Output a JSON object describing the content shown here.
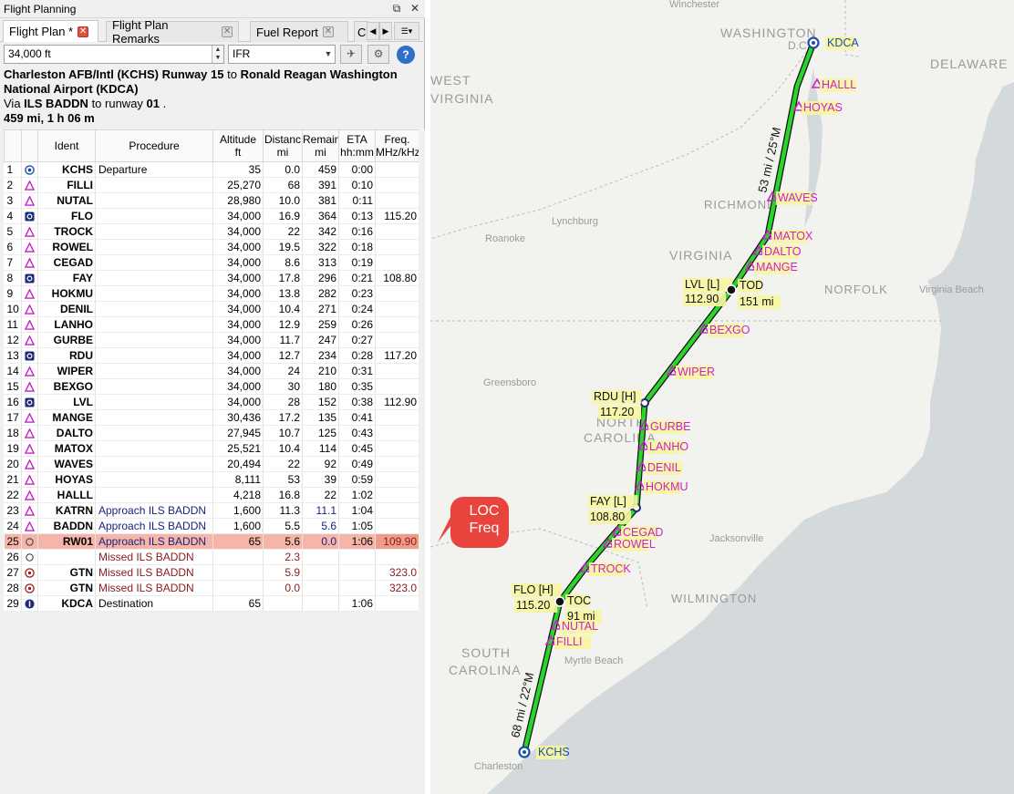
{
  "window": {
    "title": "Flight Planning",
    "float_icon": "⧉",
    "close_icon": "✕"
  },
  "tabs": [
    {
      "label": "Flight Plan *",
      "close": "✕"
    },
    {
      "label": "Flight Plan Remarks",
      "close": "✕"
    },
    {
      "label": "Fuel Report",
      "close": "✕"
    },
    {
      "label": "C",
      "close": ""
    }
  ],
  "toolbar": {
    "altitude_value": "34,000 ft",
    "flight_rules_value": "IFR",
    "help_label": "?"
  },
  "summary": {
    "departure": "Charleston AFB/Intl (KCHS) Runway 15",
    "to_word": " to ",
    "destination": "Ronald Reagan Washington National Airport (KDCA)",
    "via_prefix": "Via ",
    "approach": "ILS BADDN",
    "runway_prefix": " to runway ",
    "runway": "01",
    "runway_suffix": " .",
    "distance_time": "459 mi, 1 h 06 m"
  },
  "table": {
    "headers": {
      "ident": "Ident",
      "procedure": "Procedure",
      "altitude": [
        "Altitude",
        "ft"
      ],
      "distance": [
        "Distanc",
        "mi"
      ],
      "remaining": [
        "Remainin",
        "mi"
      ],
      "eta": [
        "ETA",
        "hh:mm"
      ],
      "freq": [
        "Freq.",
        "MHz/kHz/C"
      ]
    },
    "rows": [
      {
        "n": "1",
        "icon": "airport",
        "ident": "KCHS",
        "proc": "Departure",
        "alt": "35",
        "dist": "0.0",
        "rem": "459",
        "eta": "0:00",
        "freq": ""
      },
      {
        "n": "2",
        "icon": "waypoint",
        "ident": "FILLI",
        "proc": "",
        "alt": "25,270",
        "dist": "68",
        "rem": "391",
        "eta": "0:10",
        "freq": ""
      },
      {
        "n": "3",
        "icon": "waypoint",
        "ident": "NUTAL",
        "proc": "",
        "alt": "28,980",
        "dist": "10.0",
        "rem": "381",
        "eta": "0:11",
        "freq": ""
      },
      {
        "n": "4",
        "icon": "vor",
        "ident": "FLO",
        "proc": "",
        "alt": "34,000",
        "dist": "16.9",
        "rem": "364",
        "eta": "0:13",
        "freq": "115.20"
      },
      {
        "n": "5",
        "icon": "waypoint",
        "ident": "TROCK",
        "proc": "",
        "alt": "34,000",
        "dist": "22",
        "rem": "342",
        "eta": "0:16",
        "freq": ""
      },
      {
        "n": "6",
        "icon": "waypoint",
        "ident": "ROWEL",
        "proc": "",
        "alt": "34,000",
        "dist": "19.5",
        "rem": "322",
        "eta": "0:18",
        "freq": ""
      },
      {
        "n": "7",
        "icon": "waypoint",
        "ident": "CEGAD",
        "proc": "",
        "alt": "34,000",
        "dist": "8.6",
        "rem": "313",
        "eta": "0:19",
        "freq": ""
      },
      {
        "n": "8",
        "icon": "vor",
        "ident": "FAY",
        "proc": "",
        "alt": "34,000",
        "dist": "17.8",
        "rem": "296",
        "eta": "0:21",
        "freq": "108.80"
      },
      {
        "n": "9",
        "icon": "waypoint",
        "ident": "HOKMU",
        "proc": "",
        "alt": "34,000",
        "dist": "13.8",
        "rem": "282",
        "eta": "0:23",
        "freq": ""
      },
      {
        "n": "10",
        "icon": "waypoint",
        "ident": "DENIL",
        "proc": "",
        "alt": "34,000",
        "dist": "10.4",
        "rem": "271",
        "eta": "0:24",
        "freq": ""
      },
      {
        "n": "11",
        "icon": "waypoint",
        "ident": "LANHO",
        "proc": "",
        "alt": "34,000",
        "dist": "12.9",
        "rem": "259",
        "eta": "0:26",
        "freq": ""
      },
      {
        "n": "12",
        "icon": "waypoint",
        "ident": "GURBE",
        "proc": "",
        "alt": "34,000",
        "dist": "11.7",
        "rem": "247",
        "eta": "0:27",
        "freq": ""
      },
      {
        "n": "13",
        "icon": "vor",
        "ident": "RDU",
        "proc": "",
        "alt": "34,000",
        "dist": "12.7",
        "rem": "234",
        "eta": "0:28",
        "freq": "117.20"
      },
      {
        "n": "14",
        "icon": "waypoint",
        "ident": "WIPER",
        "proc": "",
        "alt": "34,000",
        "dist": "24",
        "rem": "210",
        "eta": "0:31",
        "freq": ""
      },
      {
        "n": "15",
        "icon": "waypoint",
        "ident": "BEXGO",
        "proc": "",
        "alt": "34,000",
        "dist": "30",
        "rem": "180",
        "eta": "0:35",
        "freq": ""
      },
      {
        "n": "16",
        "icon": "vor",
        "ident": "LVL",
        "proc": "",
        "alt": "34,000",
        "dist": "28",
        "rem": "152",
        "eta": "0:38",
        "freq": "112.90"
      },
      {
        "n": "17",
        "icon": "waypoint",
        "ident": "MANGE",
        "proc": "",
        "alt": "30,436",
        "dist": "17.2",
        "rem": "135",
        "eta": "0:41",
        "freq": ""
      },
      {
        "n": "18",
        "icon": "waypoint",
        "ident": "DALTO",
        "proc": "",
        "alt": "27,945",
        "dist": "10.7",
        "rem": "125",
        "eta": "0:43",
        "freq": ""
      },
      {
        "n": "19",
        "icon": "waypoint",
        "ident": "MATOX",
        "proc": "",
        "alt": "25,521",
        "dist": "10.4",
        "rem": "114",
        "eta": "0:45",
        "freq": ""
      },
      {
        "n": "20",
        "icon": "waypoint",
        "ident": "WAVES",
        "proc": "",
        "alt": "20,494",
        "dist": "22",
        "rem": "92",
        "eta": "0:49",
        "freq": ""
      },
      {
        "n": "21",
        "icon": "waypoint",
        "ident": "HOYAS",
        "proc": "",
        "alt": "8,111",
        "dist": "53",
        "rem": "39",
        "eta": "0:59",
        "freq": ""
      },
      {
        "n": "22",
        "icon": "waypoint",
        "ident": "HALLL",
        "proc": "",
        "alt": "4,218",
        "dist": "16.8",
        "rem": "22",
        "eta": "1:02",
        "freq": ""
      },
      {
        "n": "23",
        "icon": "waypoint",
        "ident": "KATRN",
        "proc": "Approach ILS BADDN",
        "alt": "1,600",
        "dist": "11.3",
        "rem": "11.1",
        "eta": "1:04",
        "freq": "",
        "style": "blue"
      },
      {
        "n": "24",
        "icon": "waypoint",
        "ident": "BADDN",
        "proc": "Approach ILS BADDN",
        "alt": "1,600",
        "dist": "5.5",
        "rem": "5.6",
        "eta": "1:05",
        "freq": "",
        "style": "blue"
      },
      {
        "n": "25",
        "icon": "circle",
        "ident": "RW01",
        "proc": "Approach ILS BADDN",
        "alt": "65",
        "dist": "5.6",
        "rem": "0.0",
        "eta": "1:06",
        "freq": "109.90",
        "style": "blue",
        "highlight": true
      },
      {
        "n": "26",
        "icon": "circle",
        "ident": "",
        "proc": "Missed ILS BADDN",
        "alt": "",
        "dist": "2.3",
        "rem": "",
        "eta": "",
        "freq": "",
        "style": "red"
      },
      {
        "n": "27",
        "icon": "ndb",
        "ident": "GTN",
        "proc": "Missed ILS BADDN",
        "alt": "",
        "dist": "5.9",
        "rem": "",
        "eta": "",
        "freq": "323.0",
        "style": "red"
      },
      {
        "n": "28",
        "icon": "ndb",
        "ident": "GTN",
        "proc": "Missed ILS BADDN",
        "alt": "",
        "dist": "0.0",
        "rem": "",
        "eta": "",
        "freq": "323.0",
        "style": "red"
      },
      {
        "n": "29",
        "icon": "dest",
        "ident": "KDCA",
        "proc": "Destination",
        "alt": "65",
        "dist": "",
        "rem": "",
        "eta": "1:06",
        "freq": ""
      }
    ]
  },
  "callout": {
    "text": "LOC\nFreq",
    "color": "#e8433d"
  },
  "map": {
    "places": [
      "Winchester",
      "WASHINGTON",
      "D.C.",
      "DELAWARE",
      "WEST",
      "VIRGINIA",
      "RICHMOND",
      "Lynchburg",
      "Roanoke",
      "VIRGINIA",
      "NORFOLK",
      "Virginia Beach",
      "Greensboro",
      "NORTH",
      "CAROLINA",
      "Jacksonville",
      "WILMINGTON",
      "SOUTH",
      "CAROLINA",
      "Myrtle Beach",
      "Charleston"
    ],
    "labels": {
      "kdca": "KDCA",
      "halll": "HALLL",
      "hoyas": "HOYAS",
      "waves": "WAVES",
      "matox": "MATOX",
      "dalto": "DALTO",
      "mange": "MANGE",
      "lvl": "LVL [L]",
      "lvl_freq": "112.90",
      "tod": "TOD",
      "tod_dist": "151 mi",
      "bexgo": "BEXGO",
      "wiper": "WIPER",
      "rdu": "RDU [H]",
      "rdu_freq": "117.20",
      "gurbe": "GURBE",
      "lanho": "LANHO",
      "denil": "DENIL",
      "hokmu": "HOKMU",
      "fay": "FAY [L]",
      "fay_freq": "108.80",
      "cegad": "CEGAD",
      "rowel": "ROWEL",
      "trock": "TROCK",
      "flo": "FLO [H]",
      "flo_freq": "115.20",
      "toc": "TOC",
      "toc_dist": "91 mi",
      "nutal": "NUTAL",
      "filli": "FILLI",
      "kchs": "KCHS",
      "leg_north": "53 mi / 25°M",
      "leg_south": "68 mi / 22°M"
    },
    "colors": {
      "route": "#2bd42b",
      "route_edge": "#111111",
      "waypoint": "#cc22cc",
      "label_bg": "#f6f5a0",
      "water": "#d4dadc",
      "land": "#f2f2ee"
    }
  }
}
